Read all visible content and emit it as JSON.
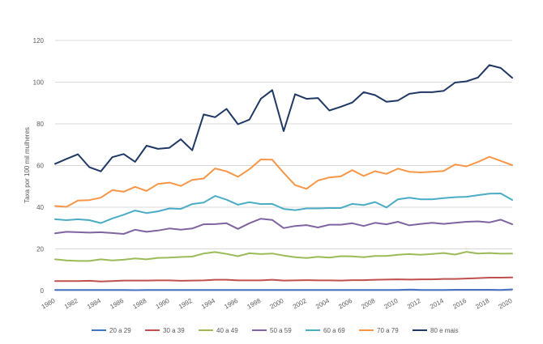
{
  "chart_data": {
    "type": "line",
    "title": "",
    "xlabel": "",
    "ylabel": "Taxa por 100 mil mulheres",
    "ylim": [
      0,
      120
    ],
    "yticks": [
      0,
      20,
      40,
      60,
      80,
      100,
      120
    ],
    "grid": true,
    "legend_position": "bottom",
    "x": [
      1980,
      1981,
      1982,
      1983,
      1984,
      1985,
      1986,
      1987,
      1988,
      1989,
      1990,
      1991,
      1992,
      1993,
      1994,
      1995,
      1996,
      1997,
      1998,
      1999,
      2000,
      2001,
      2002,
      2003,
      2004,
      2005,
      2006,
      2007,
      2008,
      2009,
      2010,
      2011,
      2012,
      2013,
      2014,
      2015,
      2016,
      2017,
      2018,
      2019,
      2020
    ],
    "xtick_labels": [
      "1980",
      "1982",
      "1984",
      "1986",
      "1988",
      "1990",
      "1992",
      "1994",
      "1996",
      "1998",
      "2000",
      "2002",
      "2004",
      "2006",
      "2008",
      "2010",
      "2012",
      "2014",
      "2016",
      "2018",
      "2020"
    ],
    "series": [
      {
        "name": "20 a 29",
        "color": "#4472C4",
        "values": [
          0.3,
          0.3,
          0.3,
          0.3,
          0.3,
          0.3,
          0.3,
          0.2,
          0.3,
          0.3,
          0.3,
          0.3,
          0.3,
          0.3,
          0.3,
          0.3,
          0.3,
          0.3,
          0.3,
          0.3,
          0.3,
          0.3,
          0.3,
          0.3,
          0.3,
          0.3,
          0.3,
          0.3,
          0.3,
          0.3,
          0.3,
          0.5,
          0.3,
          0.3,
          0.3,
          0.4,
          0.4,
          0.4,
          0.4,
          0.3,
          0.6
        ]
      },
      {
        "name": "30 a 39",
        "color": "#C0504D",
        "values": [
          4.6,
          4.6,
          4.6,
          4.7,
          4.4,
          4.6,
          4.8,
          4.8,
          4.8,
          4.9,
          4.9,
          4.7,
          4.8,
          4.9,
          5.2,
          5.2,
          4.9,
          4.9,
          4.9,
          5.2,
          4.8,
          4.9,
          5.0,
          4.9,
          4.9,
          4.8,
          5.0,
          5.0,
          5.2,
          5.3,
          5.4,
          5.3,
          5.4,
          5.4,
          5.6,
          5.6,
          5.8,
          6.0,
          6.2,
          6.2,
          6.3
        ]
      },
      {
        "name": "40 a 49",
        "color": "#9BBB59",
        "values": [
          15.0,
          14.5,
          14.2,
          14.2,
          15.0,
          14.5,
          14.8,
          15.4,
          15.0,
          15.7,
          15.8,
          16.1,
          16.3,
          17.8,
          18.5,
          17.6,
          16.5,
          17.9,
          17.5,
          17.8,
          16.8,
          16.0,
          15.6,
          16.2,
          15.8,
          16.5,
          16.4,
          16.0,
          16.6,
          16.6,
          17.2,
          17.5,
          17.2,
          17.6,
          18.0,
          17.3,
          18.6,
          17.8,
          18.0,
          17.7,
          17.8
        ]
      },
      {
        "name": "50 a 59",
        "color": "#8064A2",
        "values": [
          27.5,
          28.2,
          28.0,
          27.8,
          28.0,
          27.6,
          27.2,
          29.2,
          28.2,
          28.8,
          29.8,
          29.2,
          29.8,
          31.8,
          31.9,
          32.3,
          29.6,
          32.3,
          34.5,
          33.9,
          30.0,
          31.0,
          31.4,
          30.3,
          31.6,
          31.6,
          32.3,
          31.0,
          32.5,
          31.8,
          33.0,
          31.3,
          32.0,
          32.5,
          32.0,
          32.5,
          33.0,
          33.2,
          32.7,
          34.0,
          31.8
        ]
      },
      {
        "name": "60 a 69",
        "color": "#4BACC6",
        "values": [
          34.2,
          33.8,
          34.2,
          33.8,
          32.4,
          34.6,
          36.4,
          38.4,
          37.2,
          38.0,
          39.4,
          39.2,
          41.5,
          42.2,
          45.4,
          43.6,
          41.2,
          42.4,
          41.5,
          41.6,
          39.2,
          38.6,
          39.4,
          39.4,
          39.6,
          39.6,
          41.6,
          41.0,
          42.5,
          39.9,
          43.8,
          44.6,
          43.8,
          43.8,
          44.4,
          44.8,
          45.0,
          45.8,
          46.5,
          46.6,
          43.5
        ]
      },
      {
        "name": "70 a 79",
        "color": "#F79646",
        "values": [
          40.6,
          40.2,
          43.2,
          43.4,
          44.6,
          48.2,
          47.4,
          49.8,
          47.8,
          51.2,
          51.8,
          50.2,
          53.1,
          53.8,
          58.6,
          57.2,
          54.6,
          58.2,
          62.9,
          62.8,
          56.5,
          50.6,
          48.8,
          52.8,
          54.3,
          54.8,
          57.8,
          55.0,
          57.3,
          56.0,
          58.5,
          57.0,
          56.7,
          57.0,
          57.4,
          60.5,
          59.6,
          61.7,
          64.2,
          62.2,
          60.2
        ]
      },
      {
        "name": "80 e mais",
        "color": "#1F3864",
        "values": [
          60.8,
          63.2,
          65.4,
          59.2,
          57.2,
          64.0,
          65.5,
          61.8,
          69.5,
          68.0,
          68.5,
          72.6,
          67.3,
          84.5,
          83.2,
          87.2,
          79.8,
          82.0,
          92.0,
          96.2,
          76.5,
          94.2,
          92.0,
          92.4,
          86.4,
          88.2,
          90.2,
          95.2,
          93.8,
          90.6,
          91.2,
          94.4,
          95.2,
          95.2,
          95.8,
          99.8,
          100.4,
          102.2,
          108.2,
          106.8,
          102.1
        ]
      }
    ]
  }
}
